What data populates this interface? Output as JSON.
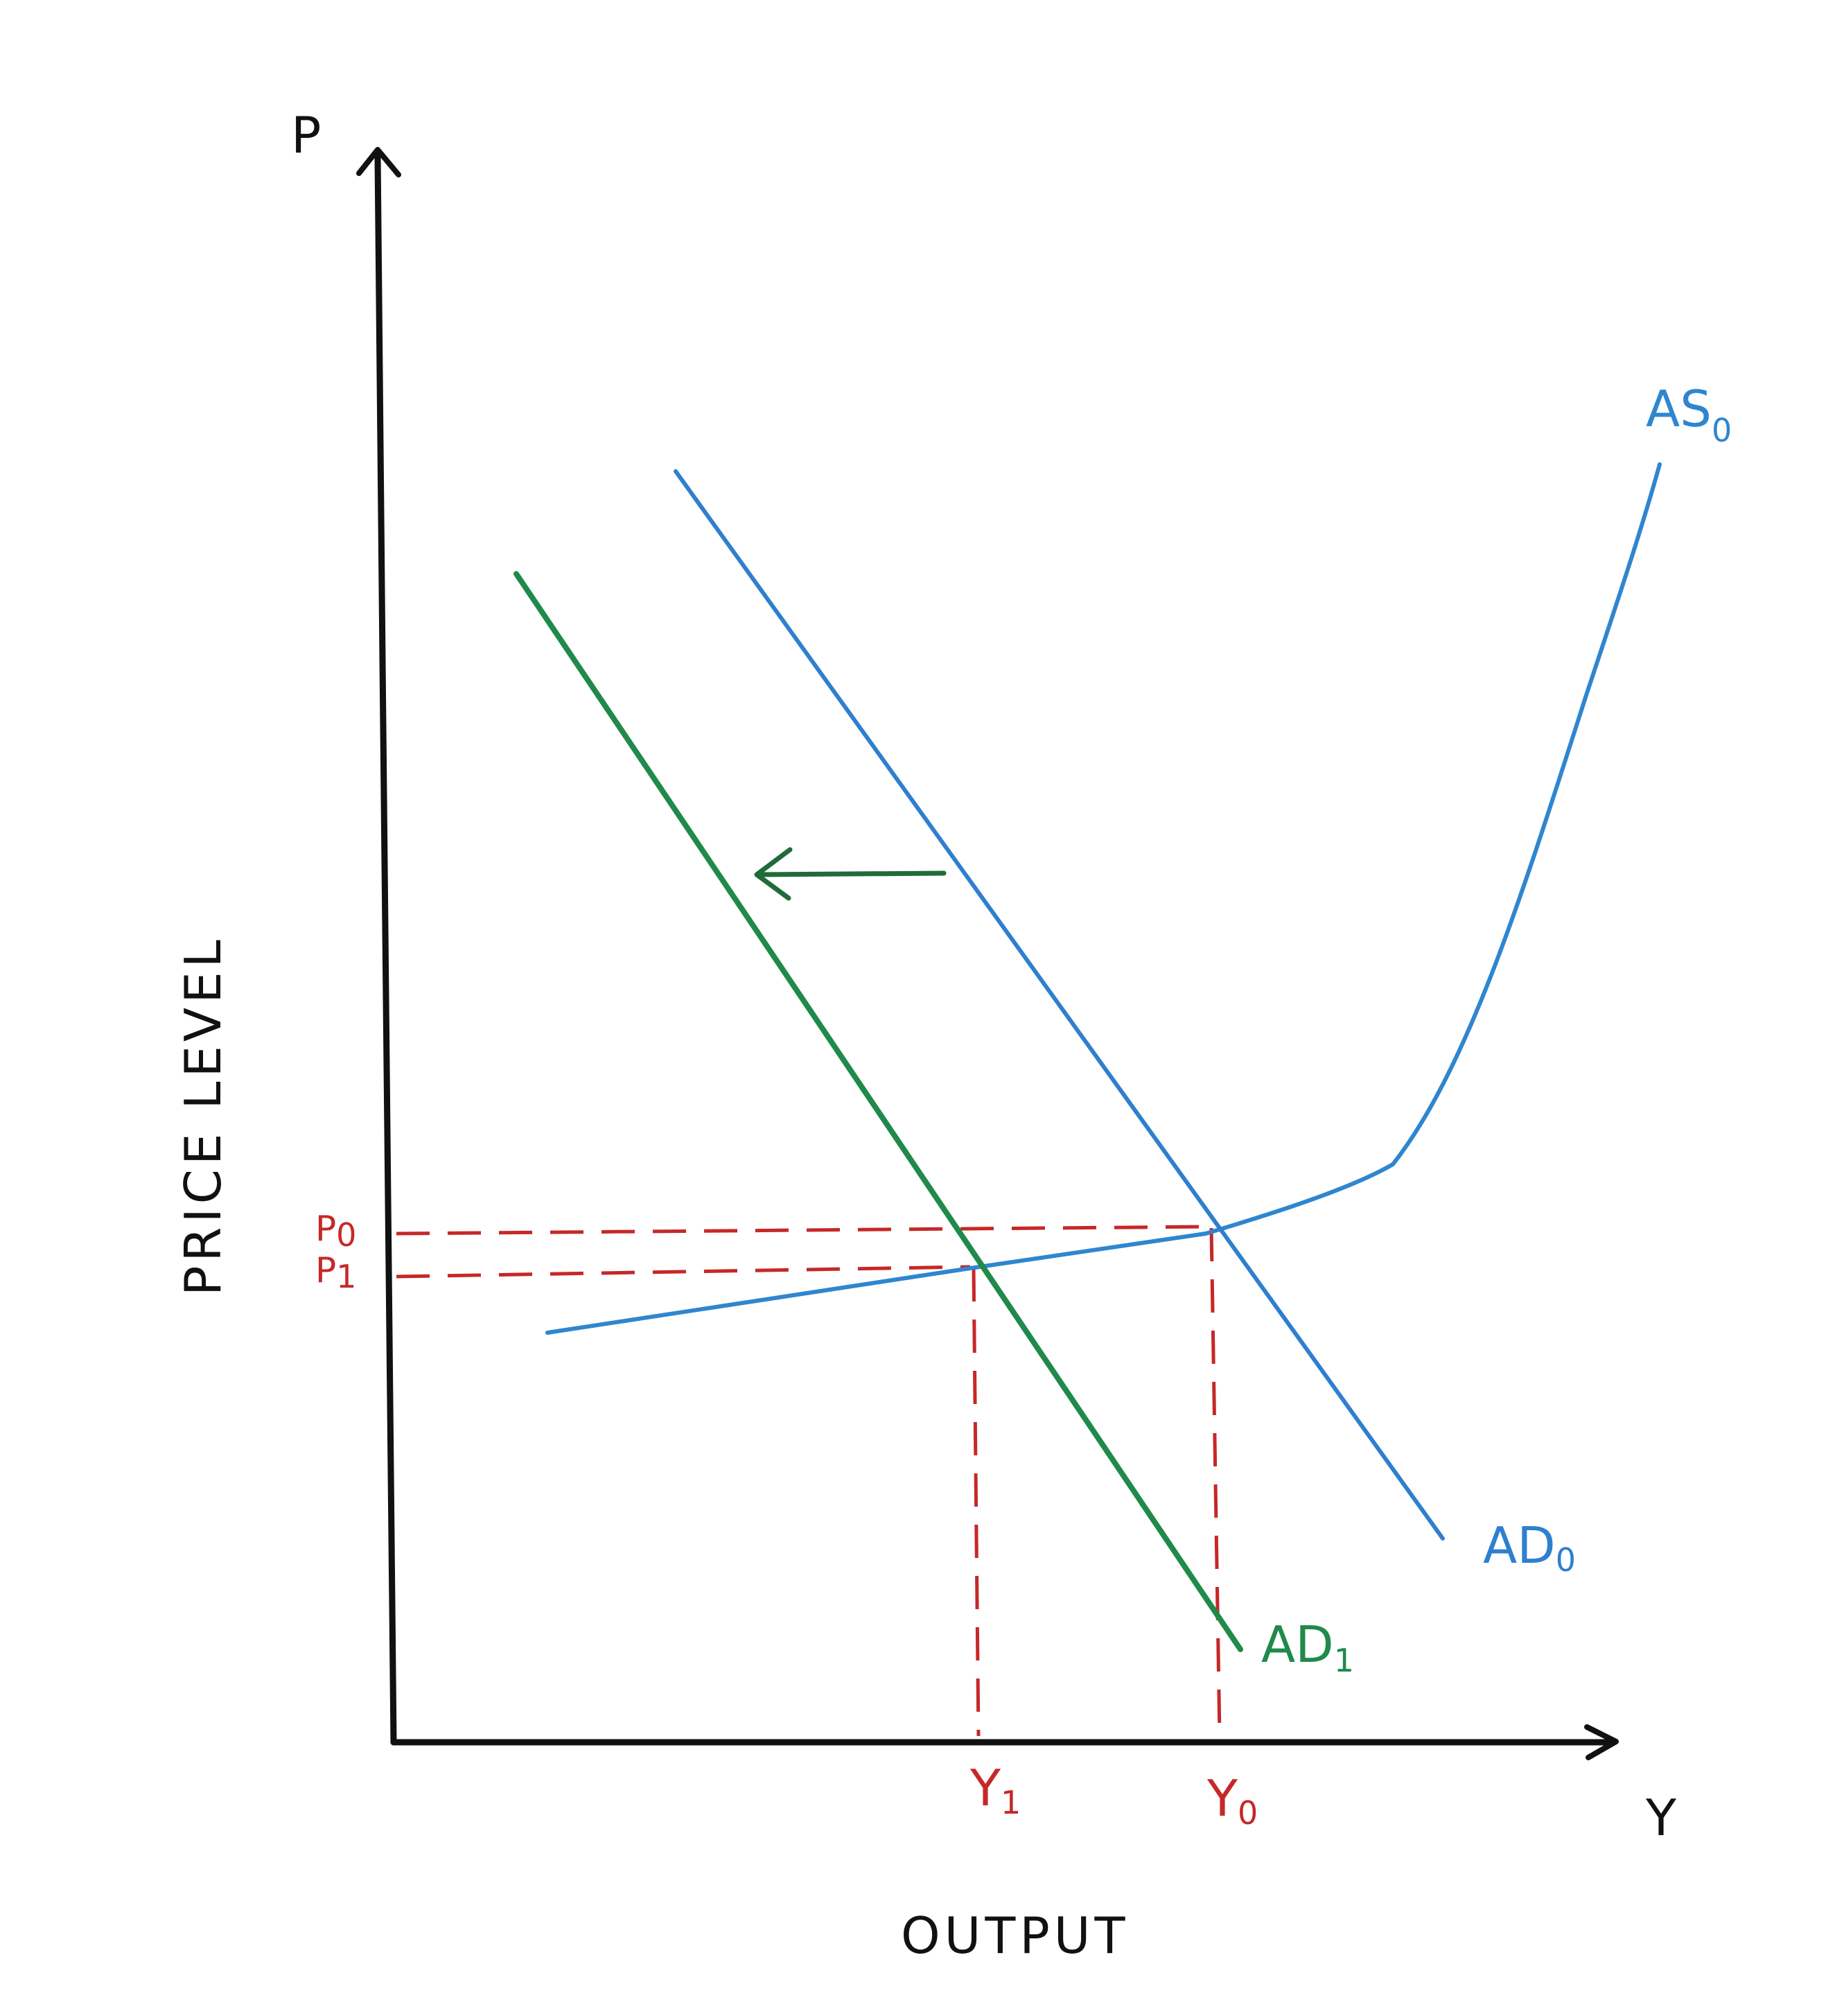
{
  "diagram": {
    "y_axis_symbol": "P",
    "x_axis_symbol": "Y",
    "y_axis_title": "PRICE LEVEL",
    "x_axis_title": "OUTPUT",
    "curves": {
      "as0": {
        "base": "AS",
        "sub": "0",
        "color": "#2f86cf"
      },
      "ad0": {
        "base": "AD",
        "sub": "0",
        "color": "#2f7fce"
      },
      "ad1": {
        "base": "AD",
        "sub": "1",
        "color": "#1f8a4a"
      }
    },
    "price_levels": [
      {
        "base": "P",
        "sub": "0"
      },
      {
        "base": "P",
        "sub": "1"
      }
    ],
    "output_levels": [
      {
        "base": "Y",
        "sub": "1"
      },
      {
        "base": "Y",
        "sub": "0"
      }
    ],
    "colors": {
      "axes": "#111111",
      "guides": "#c62828",
      "shift_arrow": "#1f6b3a"
    }
  }
}
